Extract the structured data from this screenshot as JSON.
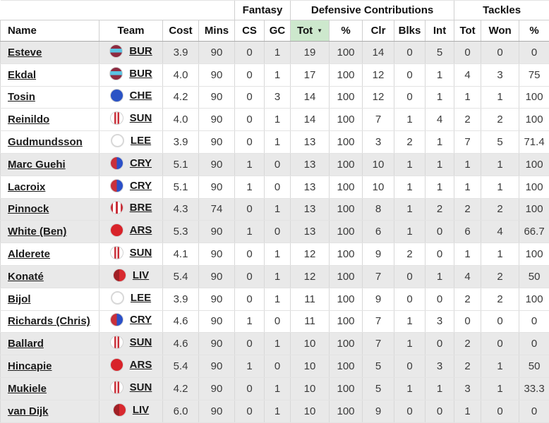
{
  "colors": {
    "sorted_header_bg": "#cde8cd",
    "shaded_row_bg": "#e9e9e9"
  },
  "table": {
    "groups": [
      {
        "label": "",
        "span": 4
      },
      {
        "label": "Fantasy",
        "span": 2
      },
      {
        "label": "Defensive Contributions",
        "span": 5
      },
      {
        "label": "Tackles",
        "span": 3
      }
    ],
    "columns": [
      {
        "key": "name",
        "label": "Name"
      },
      {
        "key": "team",
        "label": "Team"
      },
      {
        "key": "cost",
        "label": "Cost"
      },
      {
        "key": "mins",
        "label": "Mins"
      },
      {
        "key": "cs",
        "label": "CS"
      },
      {
        "key": "gc",
        "label": "GC"
      },
      {
        "key": "dc_tot",
        "label": "Tot",
        "sorted": true
      },
      {
        "key": "dc_pct",
        "label": "%"
      },
      {
        "key": "clr",
        "label": "Clr"
      },
      {
        "key": "blks",
        "label": "Blks"
      },
      {
        "key": "int",
        "label": "Int"
      },
      {
        "key": "tk_tot",
        "label": "Tot"
      },
      {
        "key": "tk_won",
        "label": "Won"
      },
      {
        "key": "tk_pct",
        "label": "%"
      }
    ],
    "sort_icon": "▼",
    "rows": [
      {
        "name": "Esteve",
        "team": "BUR",
        "cost": "3.9",
        "mins": "90",
        "cs": "0",
        "gc": "1",
        "dc_tot": "19",
        "dc_pct": "100",
        "clr": "14",
        "blks": "0",
        "int": "5",
        "tk_tot": "0",
        "tk_won": "0",
        "tk_pct": "0",
        "shaded": true
      },
      {
        "name": "Ekdal",
        "team": "BUR",
        "cost": "4.0",
        "mins": "90",
        "cs": "0",
        "gc": "1",
        "dc_tot": "17",
        "dc_pct": "100",
        "clr": "12",
        "blks": "0",
        "int": "1",
        "tk_tot": "4",
        "tk_won": "3",
        "tk_pct": "75",
        "shaded": false
      },
      {
        "name": "Tosin",
        "team": "CHE",
        "cost": "4.2",
        "mins": "90",
        "cs": "0",
        "gc": "3",
        "dc_tot": "14",
        "dc_pct": "100",
        "clr": "12",
        "blks": "0",
        "int": "1",
        "tk_tot": "1",
        "tk_won": "1",
        "tk_pct": "100",
        "shaded": false
      },
      {
        "name": "Reinildo",
        "team": "SUN",
        "cost": "4.0",
        "mins": "90",
        "cs": "0",
        "gc": "1",
        "dc_tot": "14",
        "dc_pct": "100",
        "clr": "7",
        "blks": "1",
        "int": "4",
        "tk_tot": "2",
        "tk_won": "2",
        "tk_pct": "100",
        "shaded": false
      },
      {
        "name": "Gudmundsson",
        "team": "LEE",
        "cost": "3.9",
        "mins": "90",
        "cs": "0",
        "gc": "1",
        "dc_tot": "13",
        "dc_pct": "100",
        "clr": "3",
        "blks": "2",
        "int": "1",
        "tk_tot": "7",
        "tk_won": "5",
        "tk_pct": "71.4",
        "shaded": false
      },
      {
        "name": "Marc Guehi",
        "team": "CRY",
        "cost": "5.1",
        "mins": "90",
        "cs": "1",
        "gc": "0",
        "dc_tot": "13",
        "dc_pct": "100",
        "clr": "10",
        "blks": "1",
        "int": "1",
        "tk_tot": "1",
        "tk_won": "1",
        "tk_pct": "100",
        "shaded": true
      },
      {
        "name": "Lacroix",
        "team": "CRY",
        "cost": "5.1",
        "mins": "90",
        "cs": "1",
        "gc": "0",
        "dc_tot": "13",
        "dc_pct": "100",
        "clr": "10",
        "blks": "1",
        "int": "1",
        "tk_tot": "1",
        "tk_won": "1",
        "tk_pct": "100",
        "shaded": false
      },
      {
        "name": "Pinnock",
        "team": "BRE",
        "cost": "4.3",
        "mins": "74",
        "cs": "0",
        "gc": "1",
        "dc_tot": "13",
        "dc_pct": "100",
        "clr": "8",
        "blks": "1",
        "int": "2",
        "tk_tot": "2",
        "tk_won": "2",
        "tk_pct": "100",
        "shaded": true
      },
      {
        "name": "White (Ben)",
        "team": "ARS",
        "cost": "5.3",
        "mins": "90",
        "cs": "1",
        "gc": "0",
        "dc_tot": "13",
        "dc_pct": "100",
        "clr": "6",
        "blks": "1",
        "int": "0",
        "tk_tot": "6",
        "tk_won": "4",
        "tk_pct": "66.7",
        "shaded": true
      },
      {
        "name": "Alderete",
        "team": "SUN",
        "cost": "4.1",
        "mins": "90",
        "cs": "0",
        "gc": "1",
        "dc_tot": "12",
        "dc_pct": "100",
        "clr": "9",
        "blks": "2",
        "int": "0",
        "tk_tot": "1",
        "tk_won": "1",
        "tk_pct": "100",
        "shaded": false
      },
      {
        "name": "Konaté",
        "team": "LIV",
        "cost": "5.4",
        "mins": "90",
        "cs": "0",
        "gc": "1",
        "dc_tot": "12",
        "dc_pct": "100",
        "clr": "7",
        "blks": "0",
        "int": "1",
        "tk_tot": "4",
        "tk_won": "2",
        "tk_pct": "50",
        "shaded": true
      },
      {
        "name": "Bijol",
        "team": "LEE",
        "cost": "3.9",
        "mins": "90",
        "cs": "0",
        "gc": "1",
        "dc_tot": "11",
        "dc_pct": "100",
        "clr": "9",
        "blks": "0",
        "int": "0",
        "tk_tot": "2",
        "tk_won": "2",
        "tk_pct": "100",
        "shaded": false
      },
      {
        "name": "Richards (Chris)",
        "team": "CRY",
        "cost": "4.6",
        "mins": "90",
        "cs": "1",
        "gc": "0",
        "dc_tot": "11",
        "dc_pct": "100",
        "clr": "7",
        "blks": "1",
        "int": "3",
        "tk_tot": "0",
        "tk_won": "0",
        "tk_pct": "0",
        "shaded": false
      },
      {
        "name": "Ballard",
        "team": "SUN",
        "cost": "4.6",
        "mins": "90",
        "cs": "0",
        "gc": "1",
        "dc_tot": "10",
        "dc_pct": "100",
        "clr": "7",
        "blks": "1",
        "int": "0",
        "tk_tot": "2",
        "tk_won": "0",
        "tk_pct": "0",
        "shaded": true
      },
      {
        "name": "Hincapie",
        "team": "ARS",
        "cost": "5.4",
        "mins": "90",
        "cs": "1",
        "gc": "0",
        "dc_tot": "10",
        "dc_pct": "100",
        "clr": "5",
        "blks": "0",
        "int": "3",
        "tk_tot": "2",
        "tk_won": "1",
        "tk_pct": "50",
        "shaded": true
      },
      {
        "name": "Mukiele",
        "team": "SUN",
        "cost": "4.2",
        "mins": "90",
        "cs": "0",
        "gc": "1",
        "dc_tot": "10",
        "dc_pct": "100",
        "clr": "5",
        "blks": "1",
        "int": "1",
        "tk_tot": "3",
        "tk_won": "1",
        "tk_pct": "33.3",
        "shaded": true
      },
      {
        "name": "van Dijk",
        "team": "LIV",
        "cost": "6.0",
        "mins": "90",
        "cs": "0",
        "gc": "1",
        "dc_tot": "10",
        "dc_pct": "100",
        "clr": "9",
        "blks": "0",
        "int": "0",
        "tk_tot": "1",
        "tk_won": "0",
        "tk_pct": "0",
        "shaded": true
      }
    ]
  },
  "team_badges": {
    "BUR": {
      "desc": "claret circle with sky-blue horizontal band",
      "colors": [
        "#8e2a40",
        "#5ac3e2"
      ]
    },
    "CHE": {
      "desc": "solid royal blue circle",
      "colors": [
        "#2b53c5"
      ]
    },
    "SUN": {
      "desc": "white circle with two red vertical stripes",
      "colors": [
        "#ffffff",
        "#c9303a"
      ]
    },
    "LEE": {
      "desc": "white circle with grey ring",
      "colors": [
        "#ffffff",
        "#d8d8d8"
      ]
    },
    "CRY": {
      "desc": "half red half blue circle",
      "colors": [
        "#c9303a",
        "#2b50c8"
      ]
    },
    "BRE": {
      "desc": "red and white vertical striped circle",
      "colors": [
        "#c9303a",
        "#ffffff"
      ]
    },
    "ARS": {
      "desc": "solid red circle",
      "colors": [
        "#d8232a"
      ]
    },
    "LIV": {
      "desc": "two-tone red circle",
      "colors": [
        "#a02025",
        "#d8292f"
      ]
    }
  }
}
